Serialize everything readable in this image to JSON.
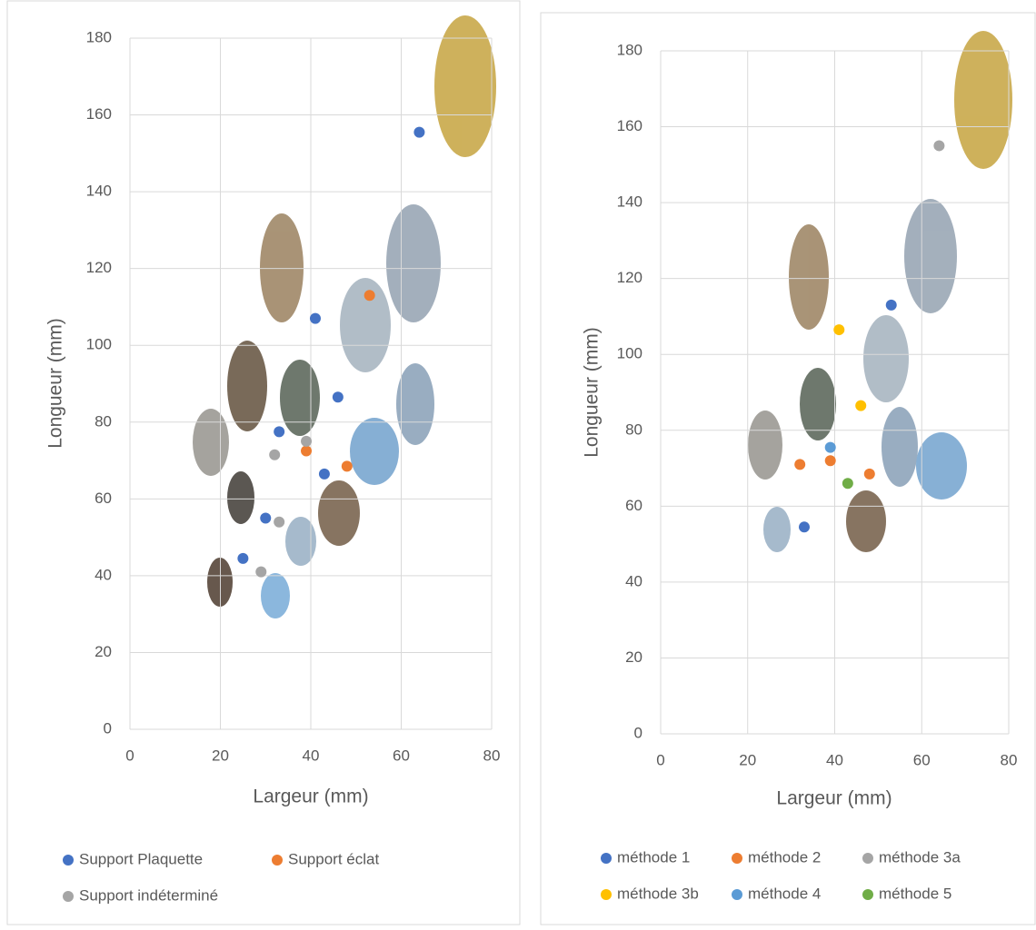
{
  "chart_data": [
    {
      "type": "scatter",
      "xlabel": "Largeur (mm)",
      "ylabel": "Longueur (mm)",
      "xlim": [
        0,
        80
      ],
      "ylim": [
        0,
        180
      ],
      "xticks": [
        0,
        20,
        40,
        60,
        80
      ],
      "yticks": [
        0,
        20,
        40,
        60,
        80,
        100,
        120,
        140,
        160,
        180
      ],
      "grid": true,
      "series": [
        {
          "name": "Support Plaquette",
          "color": "#4472c4",
          "x": [
            64,
            41,
            46,
            33,
            43,
            30,
            25
          ],
          "values": [
            155.5,
            107,
            86.5,
            77.5,
            66.5,
            55,
            44.5
          ]
        },
        {
          "name": "Support éclat",
          "color": "#ed7d31",
          "x": [
            53,
            39,
            48
          ],
          "values": [
            113,
            72.5,
            68.5
          ]
        },
        {
          "name": "Support indéterminé",
          "color": "#a5a5a5",
          "x": [
            32,
            39,
            33,
            29
          ],
          "values": [
            71.5,
            75,
            54,
            41
          ]
        }
      ]
    },
    {
      "type": "scatter",
      "xlabel": "Largeur (mm)",
      "ylabel": "Longueur (mm)",
      "xlim": [
        0,
        80
      ],
      "ylim": [
        0,
        180
      ],
      "xticks": [
        0,
        20,
        40,
        60,
        80
      ],
      "yticks": [
        0,
        20,
        40,
        60,
        80,
        100,
        120,
        140,
        160,
        180
      ],
      "grid": true,
      "series": [
        {
          "name": "méthode 1",
          "color": "#4472c4",
          "x": [
            53,
            33
          ],
          "values": [
            113,
            54.5
          ]
        },
        {
          "name": "méthode 2",
          "color": "#ed7d31",
          "x": [
            32,
            39,
            48
          ],
          "values": [
            71,
            72,
            68.5
          ]
        },
        {
          "name": "méthode 3a",
          "color": "#a5a5a5",
          "x": [
            64
          ],
          "values": [
            155
          ]
        },
        {
          "name": "méthode 3b",
          "color": "#ffc000",
          "x": [
            41,
            46
          ],
          "values": [
            106.5,
            86.5
          ]
        },
        {
          "name": "méthode 4",
          "color": "#5b9bd5",
          "x": [
            39
          ],
          "values": [
            75.5
          ]
        },
        {
          "name": "méthode 5",
          "color": "#70ad47",
          "x": [
            43
          ],
          "values": [
            66
          ]
        }
      ]
    }
  ]
}
